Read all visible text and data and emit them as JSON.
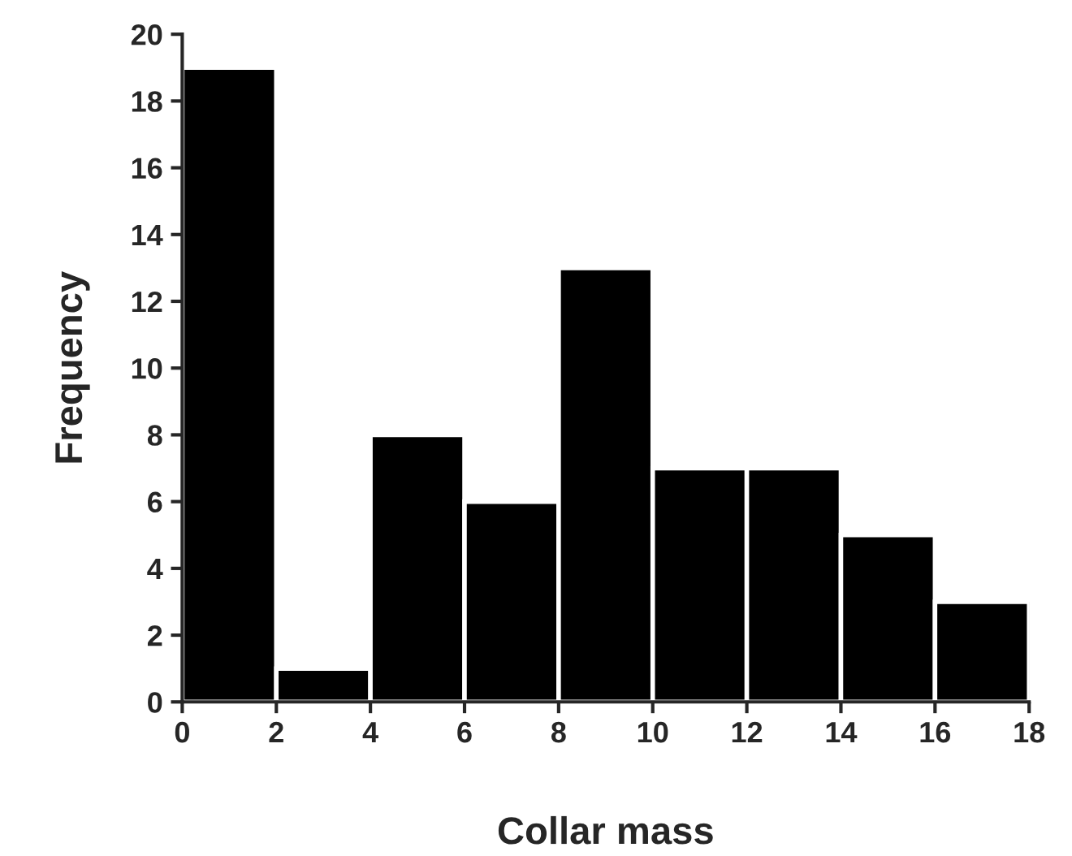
{
  "chart_data": {
    "type": "histogram",
    "xlabel": "Collar mass",
    "ylabel": "Frequency",
    "bins": [
      0,
      2,
      4,
      6,
      8,
      10,
      12,
      14,
      16,
      18
    ],
    "values": [
      19,
      1,
      8,
      6,
      13,
      7,
      7,
      5,
      3
    ],
    "color": "#000000",
    "xlim": [
      0,
      18
    ],
    "xticks": [
      0,
      2,
      4,
      6,
      8,
      10,
      12,
      14,
      16,
      18
    ],
    "ylim": [
      0,
      20
    ],
    "yticks": [
      0,
      2,
      4,
      6,
      8,
      10,
      12,
      14,
      16,
      18,
      20
    ],
    "grid": false,
    "legend": false
  }
}
